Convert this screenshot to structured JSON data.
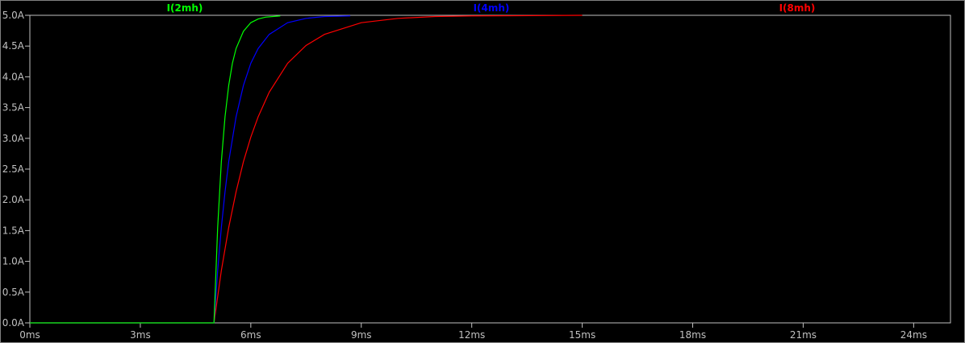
{
  "chart_data": {
    "type": "line",
    "xlim": [
      0,
      25
    ],
    "ylim": [
      0,
      5
    ],
    "x_unit": "ms",
    "y_unit": "A",
    "x_ticks": [
      "0ms",
      "3ms",
      "6ms",
      "9ms",
      "12ms",
      "15ms",
      "18ms",
      "21ms",
      "24ms"
    ],
    "x_tick_values": [
      0,
      3,
      6,
      9,
      12,
      15,
      18,
      21,
      24
    ],
    "y_ticks": [
      "0.0A",
      "0.5A",
      "1.0A",
      "1.5A",
      "2.0A",
      "2.5A",
      "3.0A",
      "3.5A",
      "4.0A",
      "4.5A",
      "5.0A"
    ],
    "y_tick_values": [
      0,
      0.5,
      1,
      1.5,
      2,
      2.5,
      3,
      3.5,
      4,
      4.5,
      5
    ],
    "grid": false,
    "legend": "top",
    "background": "#000000",
    "axis_color": "#c0c0c0",
    "series": [
      {
        "name": "I(2mh)",
        "color": "#00ff00",
        "points": [
          [
            0,
            0
          ],
          [
            5,
            0
          ],
          [
            5.1,
            1.55
          ],
          [
            5.2,
            2.62
          ],
          [
            5.3,
            3.35
          ],
          [
            5.4,
            3.86
          ],
          [
            5.5,
            4.22
          ],
          [
            5.6,
            4.46
          ],
          [
            5.8,
            4.74
          ],
          [
            6.0,
            4.88
          ],
          [
            6.2,
            4.94
          ],
          [
            6.4,
            4.97
          ],
          [
            6.8,
            4.99
          ]
        ]
      },
      {
        "name": "I(4mh)",
        "color": "#0000ff",
        "points": [
          [
            0,
            0
          ],
          [
            5,
            0
          ],
          [
            5.1,
            0.85
          ],
          [
            5.2,
            1.55
          ],
          [
            5.3,
            2.13
          ],
          [
            5.4,
            2.62
          ],
          [
            5.6,
            3.35
          ],
          [
            5.8,
            3.86
          ],
          [
            6.0,
            4.22
          ],
          [
            6.2,
            4.46
          ],
          [
            6.5,
            4.69
          ],
          [
            7.0,
            4.88
          ],
          [
            7.5,
            4.95
          ],
          [
            8.0,
            4.98
          ],
          [
            8.7,
            4.99
          ]
        ]
      },
      {
        "name": "I(8mh)",
        "color": "#ff0000",
        "points": [
          [
            0,
            0
          ],
          [
            5,
            0
          ],
          [
            5.2,
            0.85
          ],
          [
            5.4,
            1.55
          ],
          [
            5.6,
            2.13
          ],
          [
            5.8,
            2.62
          ],
          [
            6.0,
            3.02
          ],
          [
            6.2,
            3.35
          ],
          [
            6.5,
            3.75
          ],
          [
            7.0,
            4.22
          ],
          [
            7.5,
            4.51
          ],
          [
            8.0,
            4.69
          ],
          [
            9.0,
            4.88
          ],
          [
            10.0,
            4.95
          ],
          [
            11.0,
            4.98
          ],
          [
            12.0,
            4.99
          ],
          [
            15.0,
            5.0
          ]
        ]
      }
    ]
  }
}
